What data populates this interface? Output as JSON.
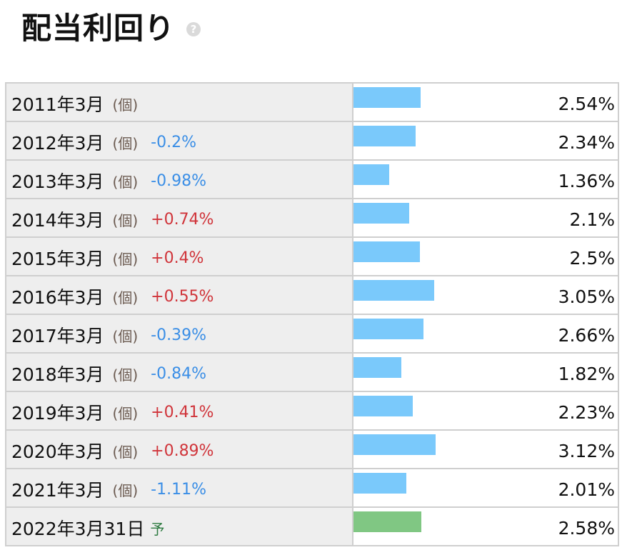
{
  "header": {
    "title": "配当利回り",
    "help_icon": "question-circle-icon",
    "help_glyph": "?"
  },
  "colors": {
    "bar_actual": "#7ac9fb",
    "bar_forecast": "#80c783",
    "change_negative": "#3a8ee6",
    "change_positive": "#d0343a"
  },
  "chart_data": {
    "type": "bar",
    "orientation": "horizontal",
    "categories": [
      "2011年3月",
      "2012年3月",
      "2013年3月",
      "2014年3月",
      "2015年3月",
      "2016年3月",
      "2017年3月",
      "2018年3月",
      "2019年3月",
      "2020年3月",
      "2021年3月",
      "2022年3月31日"
    ],
    "values": [
      2.54,
      2.34,
      1.36,
      2.1,
      2.5,
      3.05,
      2.66,
      1.82,
      2.23,
      3.12,
      2.01,
      2.58
    ],
    "value_labels": [
      "2.54%",
      "2.34%",
      "1.36%",
      "2.1%",
      "2.5%",
      "3.05%",
      "2.66%",
      "1.82%",
      "2.23%",
      "3.12%",
      "2.01%",
      "2.58%"
    ],
    "units": [
      "(個)",
      "(個)",
      "(個)",
      "(個)",
      "(個)",
      "(個)",
      "(個)",
      "(個)",
      "(個)",
      "(個)",
      "(個)",
      ""
    ],
    "changes": [
      "",
      "-0.2%",
      "-0.98%",
      "+0.74%",
      "+0.4%",
      "+0.55%",
      "-0.39%",
      "-0.84%",
      "+0.41%",
      "+0.89%",
      "-1.11%",
      ""
    ],
    "forecast_flags": [
      false,
      false,
      false,
      false,
      false,
      false,
      false,
      false,
      false,
      false,
      false,
      true
    ],
    "forecast_label": "予",
    "xlim": [
      0,
      10
    ]
  }
}
